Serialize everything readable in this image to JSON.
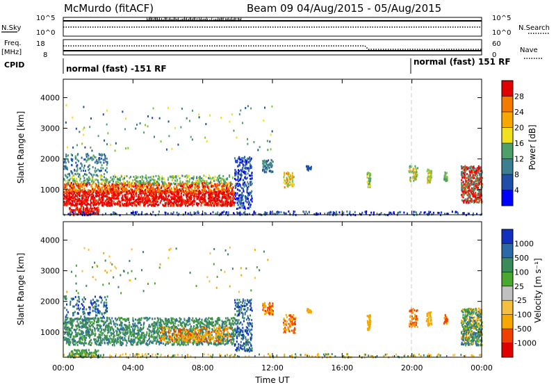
{
  "header": {
    "station": "McMurdo (fitACF)",
    "beam_line": "Beam 09 04/Aug/2015 - 05/Aug/2015"
  },
  "top_panels": {
    "nsky_label": "N.Sky",
    "nsky_ticks": [
      "10^5",
      "10^0"
    ],
    "nsearch_ticks": [
      "10^5",
      "10^0"
    ],
    "nsearch_label": "N.Search",
    "freq_label_1": "Freq.",
    "freq_label_2": "[MHz]",
    "freq_ticks": [
      "18",
      "8"
    ],
    "nave_ticks": [
      "60",
      "0"
    ],
    "nave_label": "Nave",
    "cpid_label": "CPID",
    "cpid_segments": [
      "normal (fast) -151 RF",
      "normal (fast) 151 RF"
    ]
  },
  "colors": {
    "power_scale": [
      "#0000ff",
      "#1f4fa8",
      "#3c7e92",
      "#4ea06b",
      "#7fc43c",
      "#f0e020",
      "#f7a800",
      "#f57a00",
      "#f04000",
      "#e00000",
      "#ff0000"
    ],
    "velocity_scale": [
      "#e00000",
      "#f04000",
      "#f7a800",
      "#f5c040",
      "#c0c0c0",
      "#c0c0c0",
      "#4aa830",
      "#3a8a5a",
      "#2a6aa8",
      "#1030c0"
    ],
    "axis": "#000000",
    "background": "#ffffff",
    "separator": "#cccccc"
  },
  "chart_data": [
    {
      "type": "heatmap",
      "name": "Power",
      "ylabel": "Slant Range [km]",
      "yticks": [
        "1000",
        "2000",
        "3000",
        "4000"
      ],
      "ylim": [
        180,
        4600
      ],
      "colorbar": {
        "label": "Power [dB]",
        "ticks": [
          "4",
          "8",
          "12",
          "16",
          "20",
          "24",
          "28"
        ],
        "range": [
          0,
          32
        ]
      },
      "grid": false
    },
    {
      "type": "heatmap",
      "name": "Velocity",
      "ylabel": "Slant Range [km]",
      "yticks": [
        "1000",
        "2000",
        "3000",
        "4000"
      ],
      "ylim": [
        180,
        4600
      ],
      "colorbar": {
        "label": "Velocity [m s⁻¹]",
        "ticks": [
          "1000",
          "500",
          "100",
          "25",
          "-25",
          "-100",
          "-500",
          "-1000"
        ]
      },
      "grid": false
    }
  ],
  "x_axis": {
    "label": "Time UT",
    "ticks": [
      "00:00",
      "04:00",
      "08:00",
      "12:00",
      "16:00",
      "20:00",
      "00:00"
    ],
    "range_hours": [
      0,
      24
    ]
  }
}
